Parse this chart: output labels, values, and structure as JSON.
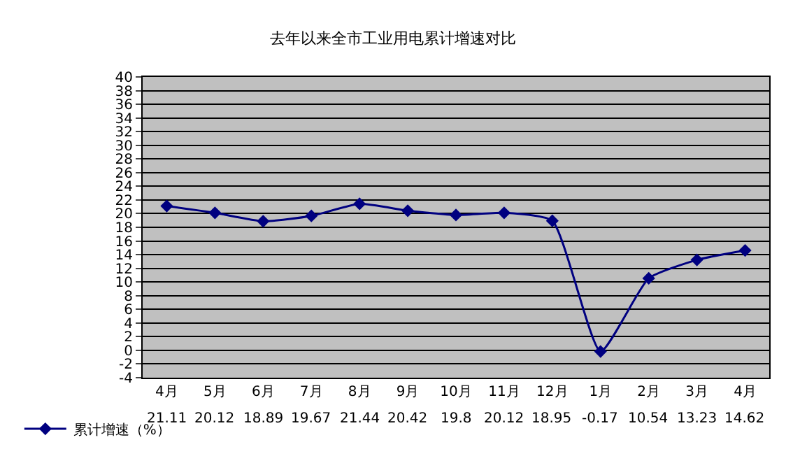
{
  "chart_data": {
    "type": "line",
    "title": "去年以来全市工业用电累计增速对比",
    "categories": [
      "4月",
      "5月",
      "6月",
      "7月",
      "8月",
      "9月",
      "10月",
      "11月",
      "12月",
      "1月",
      "2月",
      "3月",
      "4月"
    ],
    "series": [
      {
        "name": "累计增速（%）",
        "color": "#000080",
        "values": [
          21.11,
          20.12,
          18.89,
          19.67,
          21.44,
          20.42,
          19.8,
          20.12,
          18.95,
          -0.17,
          10.54,
          13.23,
          14.62
        ]
      }
    ],
    "ylim": [
      -4,
      40
    ],
    "yticks": [
      -4,
      -2,
      0,
      2,
      4,
      6,
      8,
      10,
      12,
      14,
      16,
      18,
      20,
      22,
      24,
      26,
      28,
      30,
      32,
      34,
      36,
      38,
      40
    ],
    "grid": "y",
    "legend": "bottom left",
    "marker": "diamond",
    "line_style": "solid",
    "data_labels": true
  }
}
